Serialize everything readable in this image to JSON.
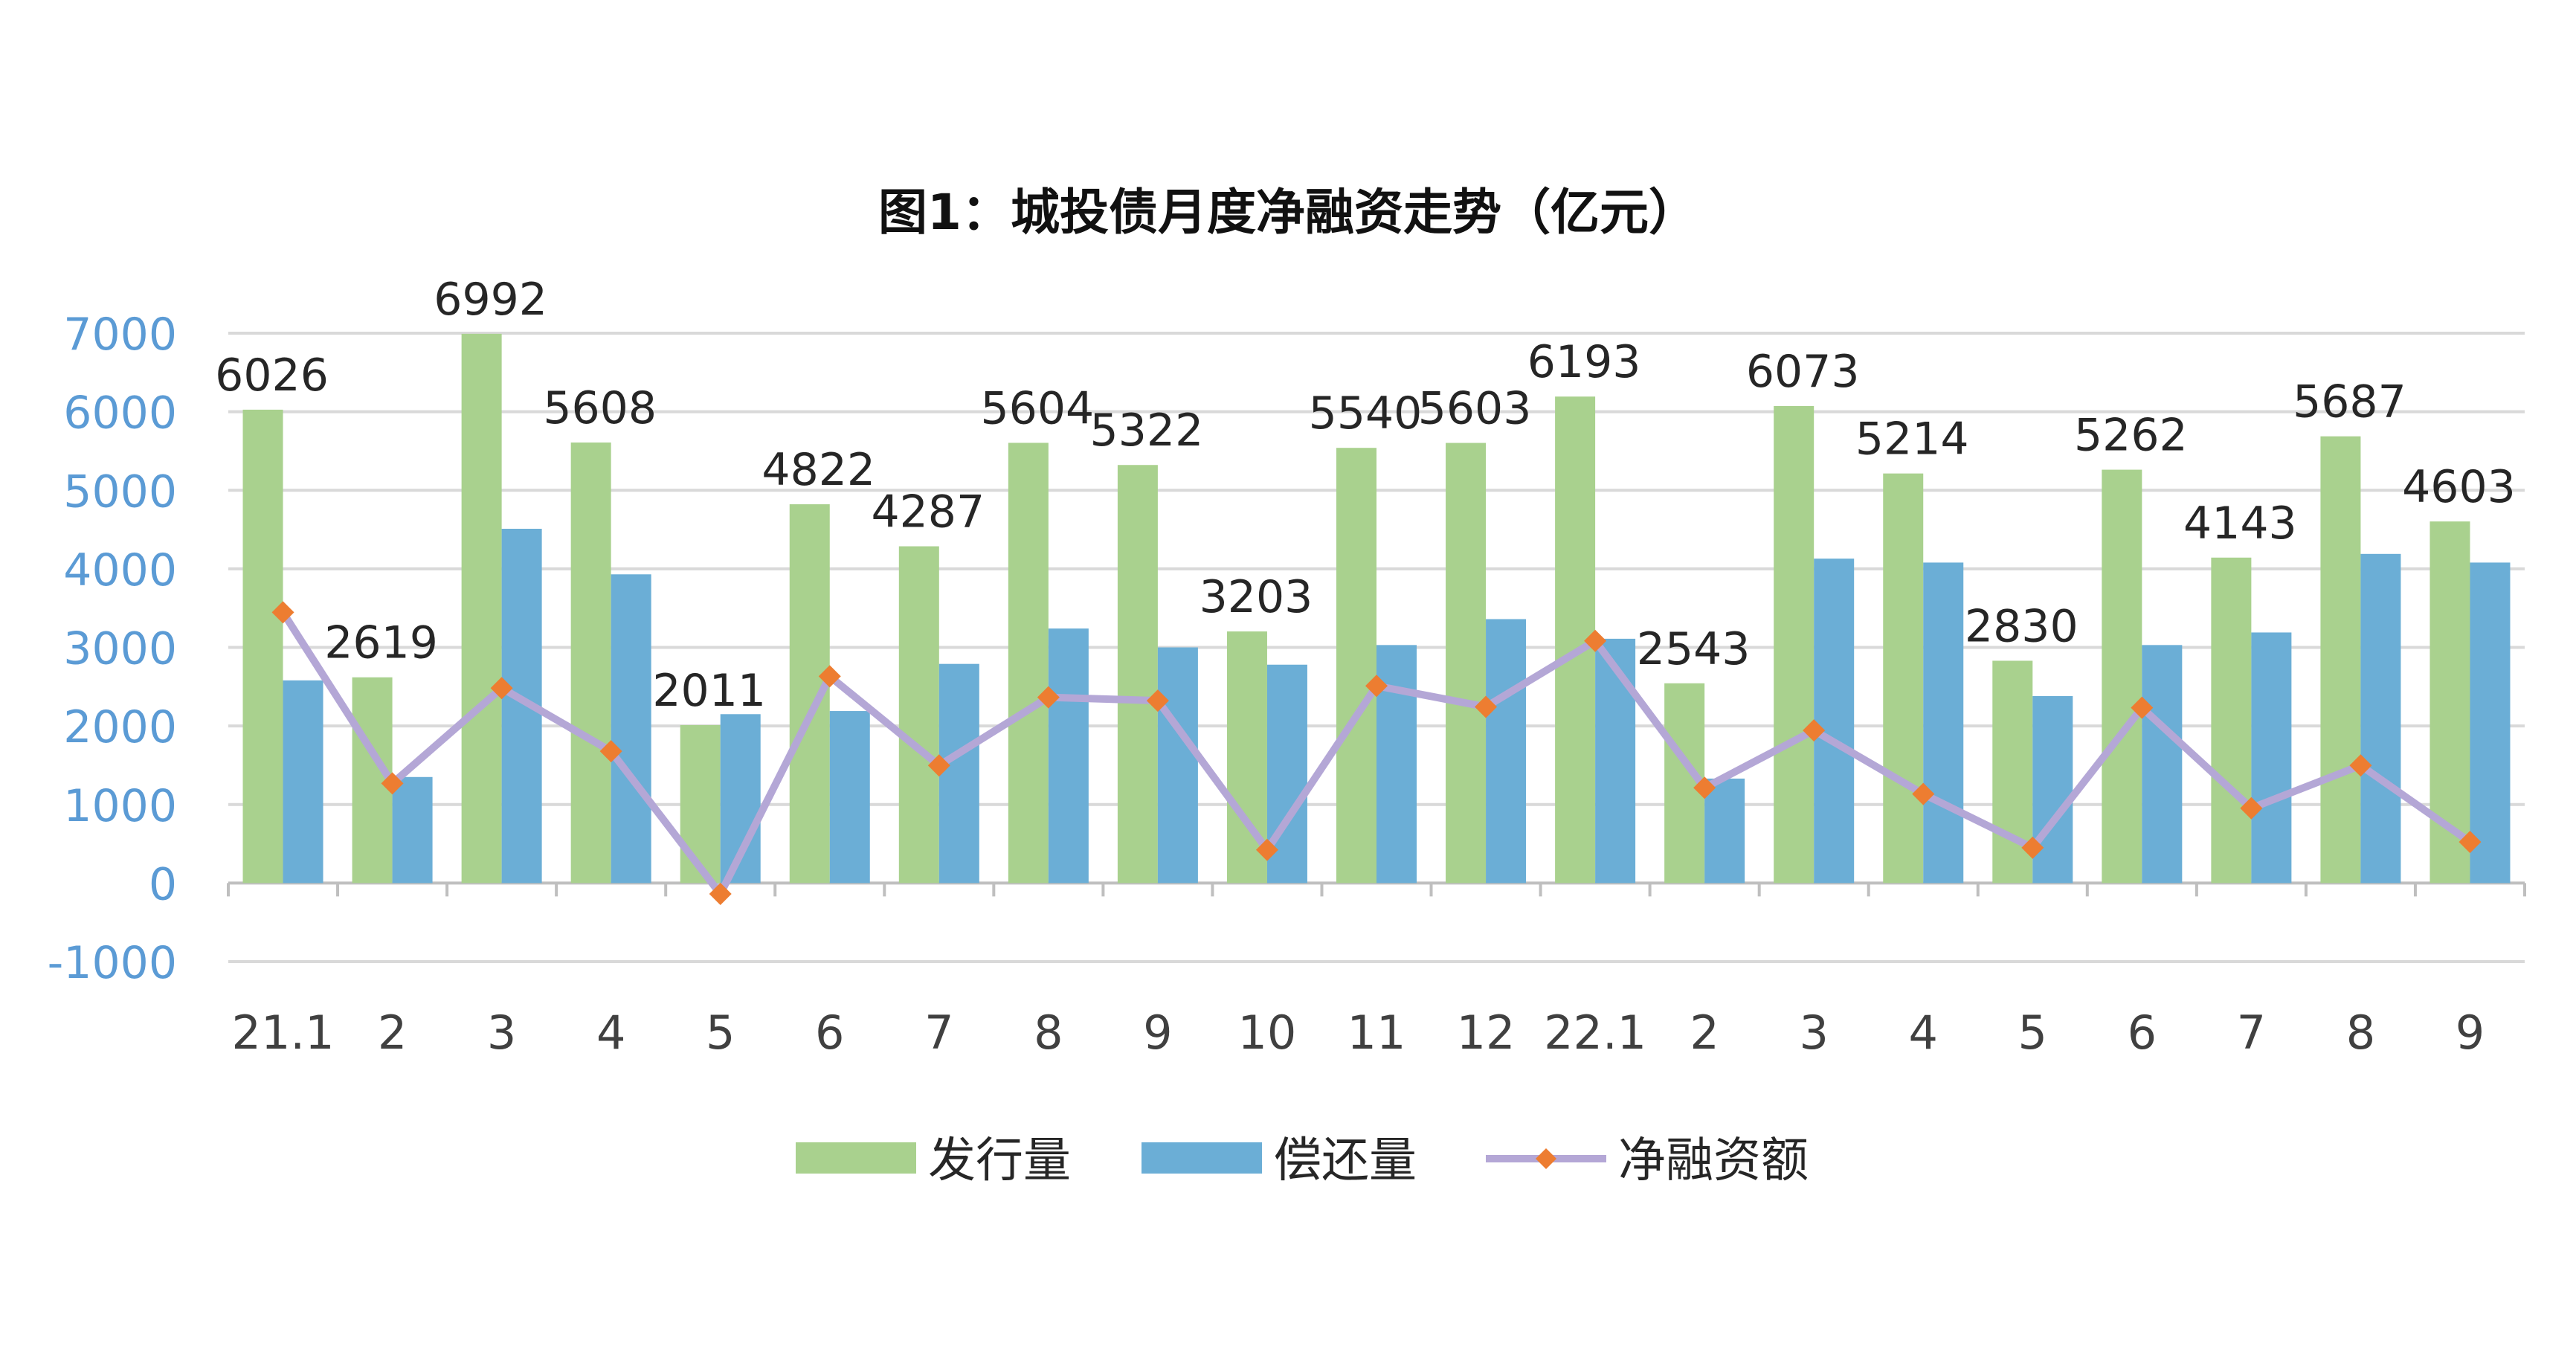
{
  "chart_data": {
    "type": "bar",
    "title": "图1：城投债月度净融资走势（亿元）",
    "categories": [
      "21.1",
      "2",
      "3",
      "4",
      "5",
      "6",
      "7",
      "8",
      "9",
      "10",
      "11",
      "12",
      "22.1",
      "2",
      "3",
      "4",
      "5",
      "6",
      "7",
      "8",
      "9"
    ],
    "ylim": [
      -1000,
      7000
    ],
    "yticks": [
      7000,
      6000,
      5000,
      4000,
      3000,
      2000,
      1000,
      0,
      -1000
    ],
    "grid": true,
    "legend_position": "bottom",
    "series": [
      {
        "name": "发行量",
        "kind": "bar",
        "color": "#A9D18E",
        "values": [
          6026,
          2619,
          6992,
          5608,
          2011,
          4822,
          4287,
          5604,
          5322,
          3203,
          5540,
          5603,
          6193,
          2543,
          6073,
          5214,
          2830,
          5262,
          4143,
          5687,
          4603
        ],
        "data_labels": true
      },
      {
        "name": "偿还量",
        "kind": "bar",
        "color": "#6BAED6",
        "values": [
          2580,
          1350,
          4510,
          3930,
          2150,
          2190,
          2790,
          3240,
          3000,
          2780,
          3030,
          3360,
          3110,
          1330,
          4130,
          4080,
          2380,
          3030,
          3190,
          4190,
          4080
        ],
        "data_labels": false
      },
      {
        "name": "净融资额",
        "kind": "line",
        "color": "#B4A7D6",
        "marker_color": "#ED7D31",
        "values": [
          3446,
          1269,
          2482,
          1678,
          -139,
          2632,
          1497,
          2364,
          2322,
          423,
          2510,
          2243,
          3083,
          1213,
          1943,
          1134,
          450,
          2232,
          953,
          1497,
          523
        ],
        "data_labels": false
      }
    ]
  }
}
